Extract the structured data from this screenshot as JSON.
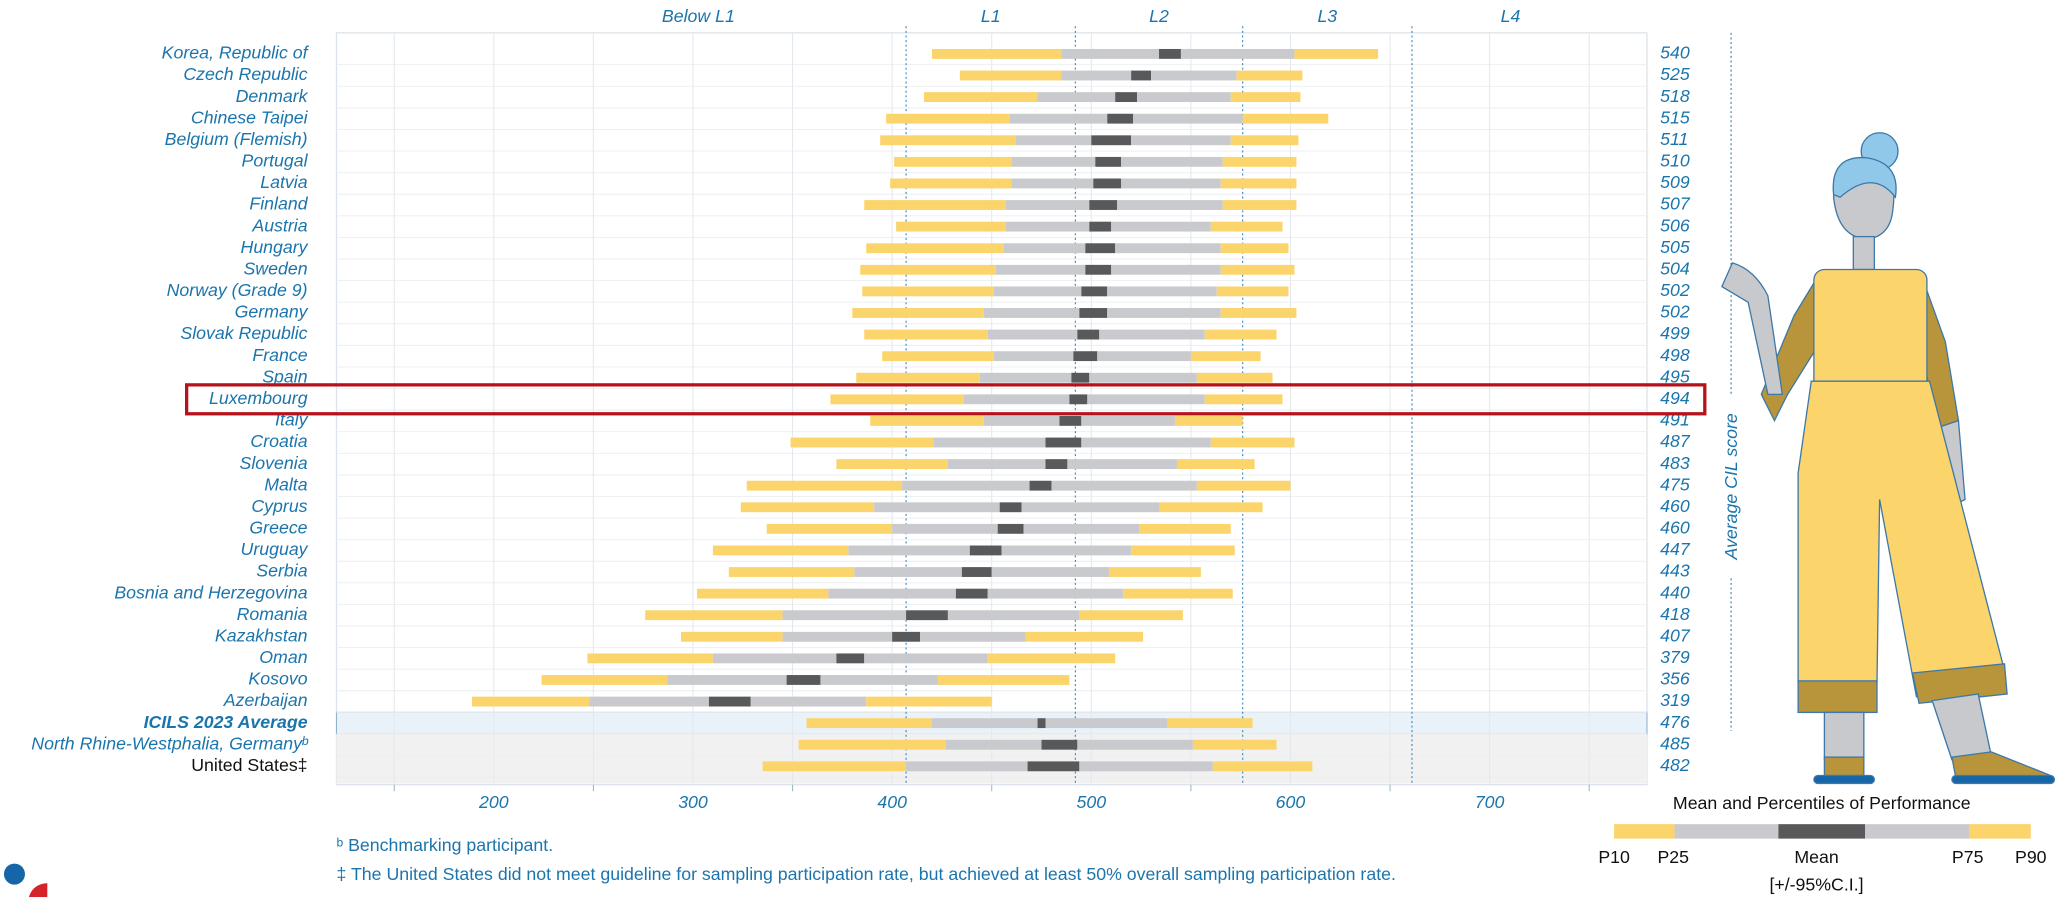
{
  "chart_data": {
    "type": "range-bar",
    "axis_label": "Average CIL score",
    "categories": [
      "Korea, Republic of",
      "Czech Republic",
      "Denmark",
      "Chinese Taipei",
      "Belgium (Flemish)",
      "Portugal",
      "Latvia",
      "Finland",
      "Austria",
      "Hungary",
      "Sweden",
      "Norway (Grade 9)",
      "Germany",
      "Slovak Republic",
      "France",
      "Spain",
      "Luxembourg",
      "Italy",
      "Croatia",
      "Slovenia",
      "Malta",
      "Cyprus",
      "Greece",
      "Uruguay",
      "Serbia",
      "Bosnia and Herzegovina",
      "Romania",
      "Kazakhstan",
      "Oman",
      "Kosovo",
      "Azerbaijan",
      "ICILS 2023 Average",
      "North Rhine-Westphalia, Germanyᵇ",
      "United States‡"
    ],
    "mean": [
      540,
      525,
      518,
      515,
      511,
      510,
      509,
      507,
      506,
      505,
      504,
      502,
      502,
      499,
      498,
      495,
      494,
      491,
      487,
      483,
      475,
      460,
      460,
      447,
      443,
      440,
      418,
      407,
      379,
      356,
      319,
      476,
      485,
      482
    ],
    "p10": [
      420,
      434,
      416,
      397,
      394,
      401,
      399,
      386,
      402,
      387,
      384,
      385,
      380,
      386,
      395,
      382,
      369,
      389,
      349,
      372,
      327,
      324,
      337,
      310,
      318,
      302,
      276,
      294,
      247,
      224,
      189,
      357,
      353,
      335
    ],
    "p25": [
      485,
      485,
      473,
      459,
      462,
      460,
      460,
      457,
      457,
      456,
      452,
      451,
      446,
      448,
      451,
      444,
      436,
      446,
      421,
      428,
      405,
      391,
      400,
      378,
      381,
      368,
      345,
      345,
      310,
      287,
      248,
      420,
      427,
      407
    ],
    "ci_low": [
      534,
      520,
      512,
      508,
      500,
      502,
      501,
      499,
      499,
      497,
      497,
      495,
      494,
      493,
      491,
      490,
      489,
      484,
      477,
      477,
      469,
      454,
      453,
      439,
      435,
      432,
      407,
      400,
      372,
      347,
      308,
      473,
      475,
      468
    ],
    "ci_high": [
      545,
      530,
      523,
      521,
      520,
      515,
      515,
      513,
      510,
      512,
      510,
      508,
      508,
      504,
      503,
      499,
      498,
      495,
      495,
      488,
      480,
      465,
      466,
      455,
      450,
      448,
      428,
      414,
      386,
      364,
      329,
      477,
      493,
      494
    ],
    "p75": [
      602,
      573,
      570,
      576,
      570,
      566,
      565,
      566,
      560,
      565,
      565,
      563,
      565,
      557,
      550,
      553,
      557,
      542,
      560,
      543,
      553,
      534,
      524,
      520,
      509,
      516,
      494,
      467,
      448,
      423,
      387,
      538,
      551,
      561
    ],
    "p90": [
      644,
      606,
      605,
      619,
      604,
      603,
      603,
      603,
      596,
      599,
      602,
      599,
      603,
      593,
      585,
      591,
      596,
      576,
      602,
      582,
      600,
      586,
      570,
      572,
      555,
      571,
      546,
      526,
      512,
      489,
      450,
      581,
      593,
      611
    ],
    "colors": {
      "outer": "#fbd46c",
      "inner": "#c9cacd",
      "ci": "#58595b"
    },
    "xlim": [
      121,
      779
    ],
    "xticks": [
      200,
      300,
      400,
      500,
      600,
      700
    ],
    "minor_xticks": [
      150,
      250,
      350,
      450,
      550,
      650,
      750
    ],
    "benchmarks": [
      407,
      492,
      576,
      661
    ],
    "levels": [
      "Below L1",
      "L1",
      "L2",
      "L3",
      "L4"
    ],
    "legend": {
      "title": "Mean and Percentiles of Performance",
      "labels": [
        "P10",
        "P25",
        "Mean",
        "P75",
        "P90"
      ],
      "ci_note": "[+/-95%C.I.]"
    },
    "footnotes": [
      "ᵇ Benchmarking participant.",
      "‡ The United States did not meet guideline for sampling participation rate, but achieved at least 50% overall sampling participation rate."
    ]
  }
}
